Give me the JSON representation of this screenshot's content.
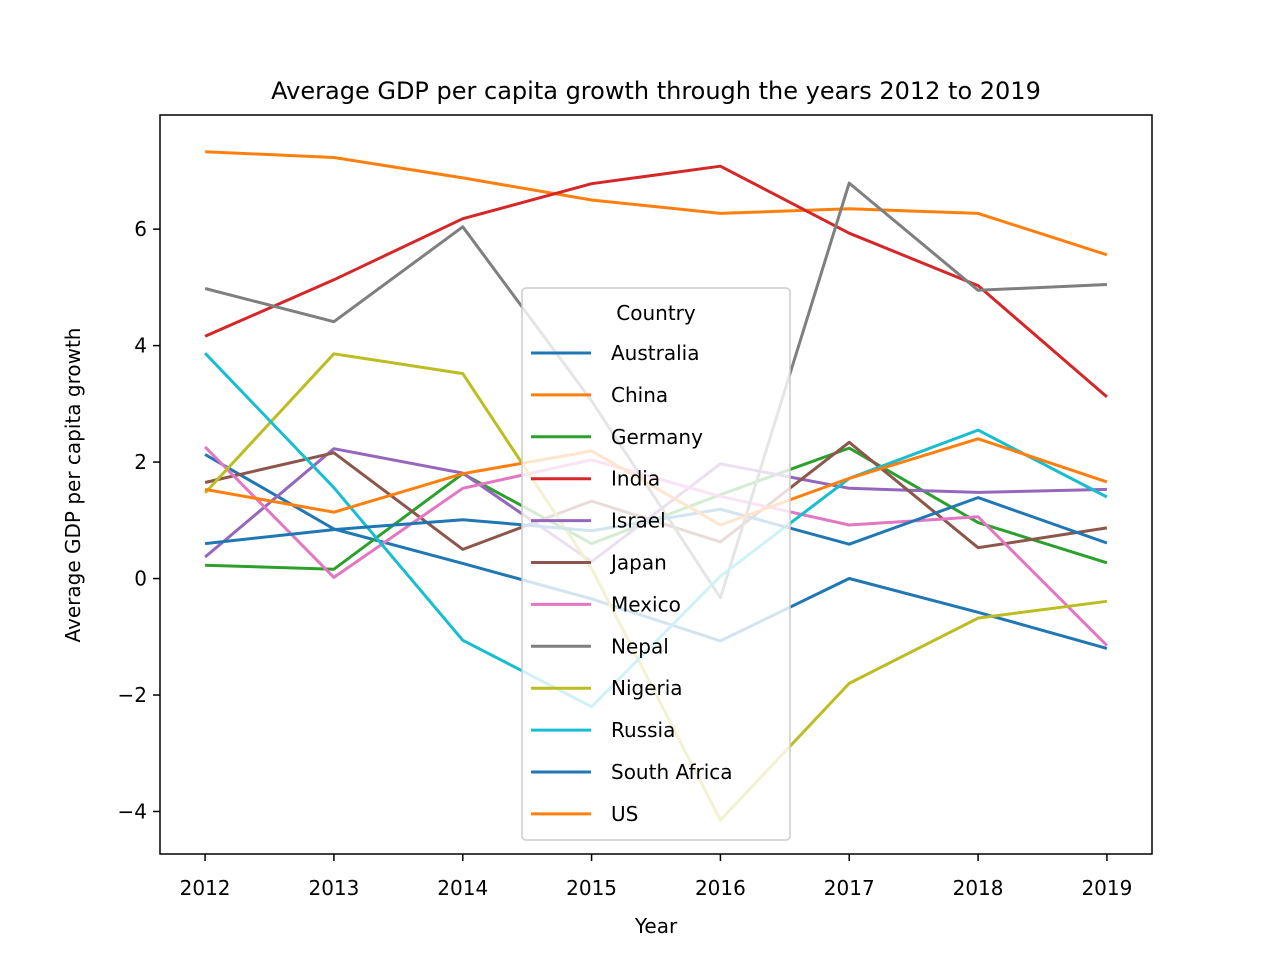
{
  "chart_data": {
    "type": "line",
    "title": "Average GDP per capita growth through the years 2012 to 2019",
    "xlabel": "Year",
    "ylabel": "Average GDP per capita growth",
    "x": [
      2012,
      2013,
      2014,
      2015,
      2016,
      2017,
      2018,
      2019
    ],
    "xticks": [
      "2012",
      "2013",
      "2014",
      "2015",
      "2016",
      "2017",
      "2018",
      "2019"
    ],
    "yticks": [
      -4,
      -2,
      0,
      2,
      4,
      6
    ],
    "ytick_labels": [
      "−4",
      "−2",
      "0",
      "2",
      "4",
      "6"
    ],
    "xlim": [
      2011.65,
      2019.35
    ],
    "ylim": [
      -4.73,
      7.96
    ],
    "grid": false,
    "legend": {
      "title": "Country",
      "placement": "center"
    },
    "series": [
      {
        "name": "Australia",
        "color": "#1f77b4",
        "values": [
          2.13,
          0.85,
          0.26,
          -0.35,
          -1.07,
          0.0,
          -0.58,
          -1.2
        ]
      },
      {
        "name": "China",
        "color": "#ff7f0e",
        "values": [
          7.33,
          7.23,
          6.88,
          6.5,
          6.27,
          6.35,
          6.27,
          5.56
        ]
      },
      {
        "name": "Germany",
        "color": "#2ca02c",
        "values": [
          0.23,
          0.16,
          1.8,
          0.6,
          1.44,
          2.24,
          0.96,
          0.27
        ]
      },
      {
        "name": "India",
        "color": "#d62728",
        "values": [
          4.16,
          5.13,
          6.18,
          6.78,
          7.08,
          5.93,
          5.03,
          3.12
        ]
      },
      {
        "name": "Israel",
        "color": "#9467bd",
        "values": [
          0.37,
          2.23,
          1.81,
          0.29,
          1.97,
          1.55,
          1.48,
          1.53
        ]
      },
      {
        "name": "Japan",
        "color": "#8c564b",
        "values": [
          1.65,
          2.16,
          0.5,
          1.33,
          0.63,
          2.34,
          0.53,
          0.87
        ]
      },
      {
        "name": "Mexico",
        "color": "#e377c2",
        "values": [
          2.26,
          0.02,
          1.55,
          2.04,
          1.41,
          0.92,
          1.06,
          -1.15
        ]
      },
      {
        "name": "Nepal",
        "color": "#7f7f7f",
        "values": [
          4.98,
          4.41,
          6.04,
          3.05,
          -0.33,
          6.79,
          4.95,
          5.05
        ]
      },
      {
        "name": "Nigeria",
        "color": "#bcbd22",
        "values": [
          1.47,
          3.86,
          3.52,
          0.17,
          -4.15,
          -1.8,
          -0.68,
          -0.39
        ]
      },
      {
        "name": "Russia",
        "color": "#17becf",
        "values": [
          3.87,
          1.56,
          -1.06,
          -2.2,
          0.04,
          1.72,
          2.55,
          1.4
        ]
      },
      {
        "name": "South Africa",
        "color": "#1f77b4",
        "values": [
          0.6,
          0.84,
          1.01,
          0.82,
          1.19,
          0.59,
          1.39,
          0.61
        ]
      },
      {
        "name": "US",
        "color": "#ff7f0e",
        "values": [
          1.53,
          1.14,
          1.8,
          2.19,
          0.92,
          1.72,
          2.4,
          1.66
        ]
      }
    ]
  }
}
